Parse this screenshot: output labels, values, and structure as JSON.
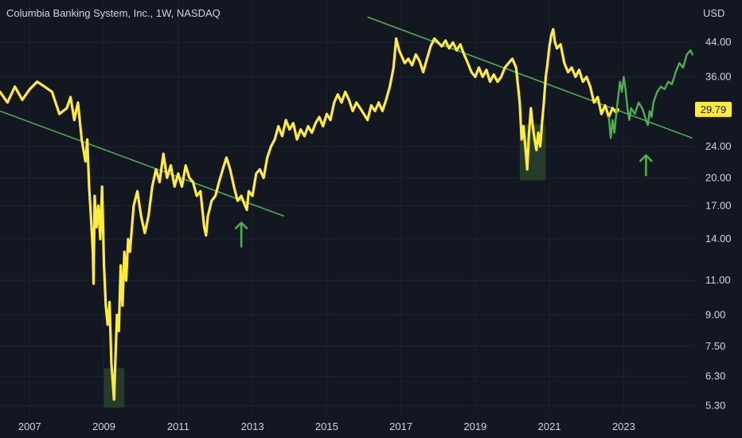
{
  "chart_data": {
    "type": "line",
    "title": "Columbia Banking System, Inc., 1W, NASDAQ",
    "currency": "USD",
    "scale": "log",
    "ylim": [
      5.1,
      49
    ],
    "xlim": [
      2006.2,
      2024.9
    ],
    "yticks": [
      5.3,
      6.3,
      7.5,
      9.0,
      11.0,
      14.0,
      17.0,
      20.0,
      24.0,
      36.0,
      44.0
    ],
    "ytick_labels": [
      "5.30",
      "6.30",
      "7.50",
      "9.00",
      "11.00",
      "14.00",
      "17.00",
      "20.00",
      "24.00",
      "36.00",
      "44.00"
    ],
    "xticks": [
      2007,
      2009,
      2011,
      2013,
      2015,
      2017,
      2019,
      2021,
      2023
    ],
    "xtick_labels": [
      "2007",
      "2009",
      "2011",
      "2013",
      "2015",
      "2017",
      "2019",
      "2021",
      "2023"
    ],
    "last_price": 29.79,
    "last_price_label": "29.79",
    "grid": true,
    "colors": {
      "background": "#131722",
      "price_line": "#ffeb3b",
      "recent_line": "#4caf50",
      "trendline": "#4caf50",
      "highlight_box": "#2e4a2e",
      "arrow": "#4caf50",
      "text": "#d1d4dc",
      "price_label_bg": "#ffeb3b"
    },
    "series": [
      {
        "color": "#ffeb3b",
        "points": [
          [
            2006.2,
            33
          ],
          [
            2006.4,
            31
          ],
          [
            2006.6,
            34
          ],
          [
            2006.8,
            31.5
          ],
          [
            2007.0,
            33.5
          ],
          [
            2007.2,
            35
          ],
          [
            2007.4,
            34
          ],
          [
            2007.6,
            33
          ],
          [
            2007.8,
            29
          ],
          [
            2008.0,
            30
          ],
          [
            2008.1,
            32
          ],
          [
            2008.2,
            28
          ],
          [
            2008.3,
            31
          ],
          [
            2008.4,
            25
          ],
          [
            2008.5,
            22
          ],
          [
            2008.55,
            25
          ],
          [
            2008.6,
            19
          ],
          [
            2008.65,
            16
          ],
          [
            2008.7,
            13
          ],
          [
            2008.72,
            10.8
          ],
          [
            2008.75,
            18
          ],
          [
            2008.8,
            15
          ],
          [
            2008.85,
            17
          ],
          [
            2008.9,
            14
          ],
          [
            2008.95,
            19
          ],
          [
            2009.0,
            12
          ],
          [
            2009.05,
            9.5
          ],
          [
            2009.1,
            8.5
          ],
          [
            2009.15,
            9.7
          ],
          [
            2009.2,
            6.8
          ],
          [
            2009.27,
            5.5
          ],
          [
            2009.35,
            9
          ],
          [
            2009.4,
            8.2
          ],
          [
            2009.45,
            12
          ],
          [
            2009.5,
            9.5
          ],
          [
            2009.55,
            13
          ],
          [
            2009.6,
            11
          ],
          [
            2009.65,
            14
          ],
          [
            2009.7,
            13
          ],
          [
            2009.8,
            17
          ],
          [
            2009.9,
            18.5
          ],
          [
            2010.0,
            16
          ],
          [
            2010.1,
            14.5
          ],
          [
            2010.2,
            16
          ],
          [
            2010.3,
            19
          ],
          [
            2010.4,
            21
          ],
          [
            2010.5,
            19.5
          ],
          [
            2010.6,
            23
          ],
          [
            2010.7,
            20
          ],
          [
            2010.8,
            21.5
          ],
          [
            2010.9,
            19
          ],
          [
            2011.0,
            20.5
          ],
          [
            2011.1,
            19
          ],
          [
            2011.2,
            21.5
          ],
          [
            2011.3,
            20
          ],
          [
            2011.4,
            19.5
          ],
          [
            2011.5,
            18
          ],
          [
            2011.6,
            18.5
          ],
          [
            2011.7,
            15
          ],
          [
            2011.75,
            14.3
          ],
          [
            2011.8,
            16
          ],
          [
            2011.9,
            17.5
          ],
          [
            2012.0,
            18
          ],
          [
            2012.1,
            19.5
          ],
          [
            2012.2,
            21
          ],
          [
            2012.3,
            22.5
          ],
          [
            2012.4,
            21
          ],
          [
            2012.5,
            19
          ],
          [
            2012.6,
            17.5
          ],
          [
            2012.7,
            18
          ],
          [
            2012.8,
            17
          ],
          [
            2012.85,
            16.6
          ],
          [
            2012.9,
            18.5
          ],
          [
            2013.0,
            18
          ],
          [
            2013.1,
            20.5
          ],
          [
            2013.2,
            21
          ],
          [
            2013.3,
            20
          ],
          [
            2013.4,
            22.5
          ],
          [
            2013.5,
            24
          ],
          [
            2013.6,
            25
          ],
          [
            2013.7,
            27
          ],
          [
            2013.8,
            25.5
          ],
          [
            2013.9,
            28
          ],
          [
            2014.0,
            26.5
          ],
          [
            2014.1,
            27.5
          ],
          [
            2014.2,
            25
          ],
          [
            2014.3,
            26.5
          ],
          [
            2014.4,
            25.5
          ],
          [
            2014.5,
            27
          ],
          [
            2014.6,
            26
          ],
          [
            2014.7,
            27.5
          ],
          [
            2014.8,
            28.5
          ],
          [
            2014.9,
            27
          ],
          [
            2015.0,
            29
          ],
          [
            2015.1,
            28
          ],
          [
            2015.2,
            31
          ],
          [
            2015.3,
            32.5
          ],
          [
            2015.4,
            31
          ],
          [
            2015.5,
            33
          ],
          [
            2015.6,
            31.5
          ],
          [
            2015.7,
            29.5
          ],
          [
            2015.8,
            31
          ],
          [
            2015.9,
            30
          ],
          [
            2016.0,
            29
          ],
          [
            2016.1,
            28
          ],
          [
            2016.2,
            30.5
          ],
          [
            2016.3,
            29.5
          ],
          [
            2016.4,
            31
          ],
          [
            2016.5,
            29.5
          ],
          [
            2016.6,
            31.5
          ],
          [
            2016.7,
            34
          ],
          [
            2016.8,
            38
          ],
          [
            2016.87,
            45
          ],
          [
            2016.95,
            42
          ],
          [
            2017.0,
            41
          ],
          [
            2017.1,
            39
          ],
          [
            2017.2,
            40
          ],
          [
            2017.3,
            38.5
          ],
          [
            2017.4,
            41
          ],
          [
            2017.5,
            39.5
          ],
          [
            2017.6,
            37
          ],
          [
            2017.7,
            40
          ],
          [
            2017.8,
            43
          ],
          [
            2017.9,
            45
          ],
          [
            2018.0,
            44
          ],
          [
            2018.1,
            43
          ],
          [
            2018.2,
            44.5
          ],
          [
            2018.3,
            42.5
          ],
          [
            2018.4,
            44
          ],
          [
            2018.5,
            42
          ],
          [
            2018.6,
            43.5
          ],
          [
            2018.7,
            41
          ],
          [
            2018.8,
            39
          ],
          [
            2018.9,
            37
          ],
          [
            2019.0,
            36
          ],
          [
            2019.1,
            38
          ],
          [
            2019.2,
            36
          ],
          [
            2019.3,
            37.5
          ],
          [
            2019.4,
            35
          ],
          [
            2019.5,
            36.5
          ],
          [
            2019.6,
            35
          ],
          [
            2019.7,
            36
          ],
          [
            2019.8,
            38
          ],
          [
            2019.9,
            39
          ],
          [
            2020.0,
            40
          ],
          [
            2020.1,
            38
          ],
          [
            2020.2,
            31
          ],
          [
            2020.25,
            25
          ],
          [
            2020.3,
            27
          ],
          [
            2020.35,
            24
          ],
          [
            2020.4,
            21
          ],
          [
            2020.45,
            26
          ],
          [
            2020.5,
            30
          ],
          [
            2020.55,
            27
          ],
          [
            2020.6,
            25
          ],
          [
            2020.65,
            23.5
          ],
          [
            2020.7,
            26
          ],
          [
            2020.75,
            24
          ],
          [
            2020.8,
            27.5
          ],
          [
            2020.85,
            31
          ],
          [
            2020.9,
            36
          ],
          [
            2020.95,
            39
          ],
          [
            2021.0,
            43
          ],
          [
            2021.05,
            46
          ],
          [
            2021.1,
            47.5
          ],
          [
            2021.15,
            44
          ],
          [
            2021.2,
            42.5
          ],
          [
            2021.3,
            43.5
          ],
          [
            2021.4,
            39
          ],
          [
            2021.5,
            37
          ],
          [
            2021.6,
            38
          ],
          [
            2021.7,
            36
          ],
          [
            2021.8,
            37.5
          ],
          [
            2021.9,
            35
          ],
          [
            2022.0,
            36
          ],
          [
            2022.1,
            34
          ],
          [
            2022.2,
            31
          ],
          [
            2022.3,
            32
          ],
          [
            2022.4,
            29
          ],
          [
            2022.5,
            30.5
          ],
          [
            2022.6,
            28.5
          ],
          [
            2022.7,
            30
          ],
          [
            2022.8,
            29.2
          ],
          [
            2022.85,
            29.79
          ]
        ]
      },
      {
        "color": "#4caf50",
        "points": [
          [
            2022.6,
            28.5
          ],
          [
            2022.65,
            25.2
          ],
          [
            2022.7,
            28
          ],
          [
            2022.75,
            26
          ],
          [
            2022.8,
            29
          ],
          [
            2022.85,
            32
          ],
          [
            2022.9,
            35
          ],
          [
            2022.95,
            33
          ],
          [
            2023.0,
            36
          ],
          [
            2023.05,
            33.5
          ],
          [
            2023.1,
            30
          ],
          [
            2023.15,
            28
          ],
          [
            2023.2,
            30
          ],
          [
            2023.3,
            29
          ],
          [
            2023.4,
            31
          ],
          [
            2023.5,
            30
          ],
          [
            2023.6,
            28
          ],
          [
            2023.65,
            27.2
          ],
          [
            2023.7,
            29.5
          ],
          [
            2023.75,
            28.5
          ],
          [
            2023.8,
            31
          ],
          [
            2023.9,
            33
          ],
          [
            2024.0,
            34
          ],
          [
            2024.1,
            33.5
          ],
          [
            2024.2,
            35
          ],
          [
            2024.3,
            34.5
          ],
          [
            2024.4,
            37
          ],
          [
            2024.5,
            39
          ],
          [
            2024.6,
            38
          ],
          [
            2024.7,
            41
          ],
          [
            2024.8,
            42
          ],
          [
            2024.85,
            41
          ]
        ]
      }
    ],
    "trendlines": [
      {
        "from": [
          2006.2,
          29.5
        ],
        "to": [
          2013.85,
          16.0
        ]
      },
      {
        "from": [
          2016.1,
          51
        ],
        "to": [
          2024.85,
          25.2
        ]
      }
    ],
    "highlight_boxes": [
      {
        "x0": 2009.0,
        "x1": 2009.55,
        "y0": 5.25,
        "y1": 6.6
      },
      {
        "x0": 2020.2,
        "x1": 2020.9,
        "y0": 19.7,
        "y1": 27.3
      }
    ],
    "arrows": [
      {
        "x": 2012.7,
        "y_tip": 15.4,
        "y_base": 13.4
      },
      {
        "x": 2023.6,
        "y_tip": 22.8,
        "y_base": 20.3
      }
    ]
  }
}
